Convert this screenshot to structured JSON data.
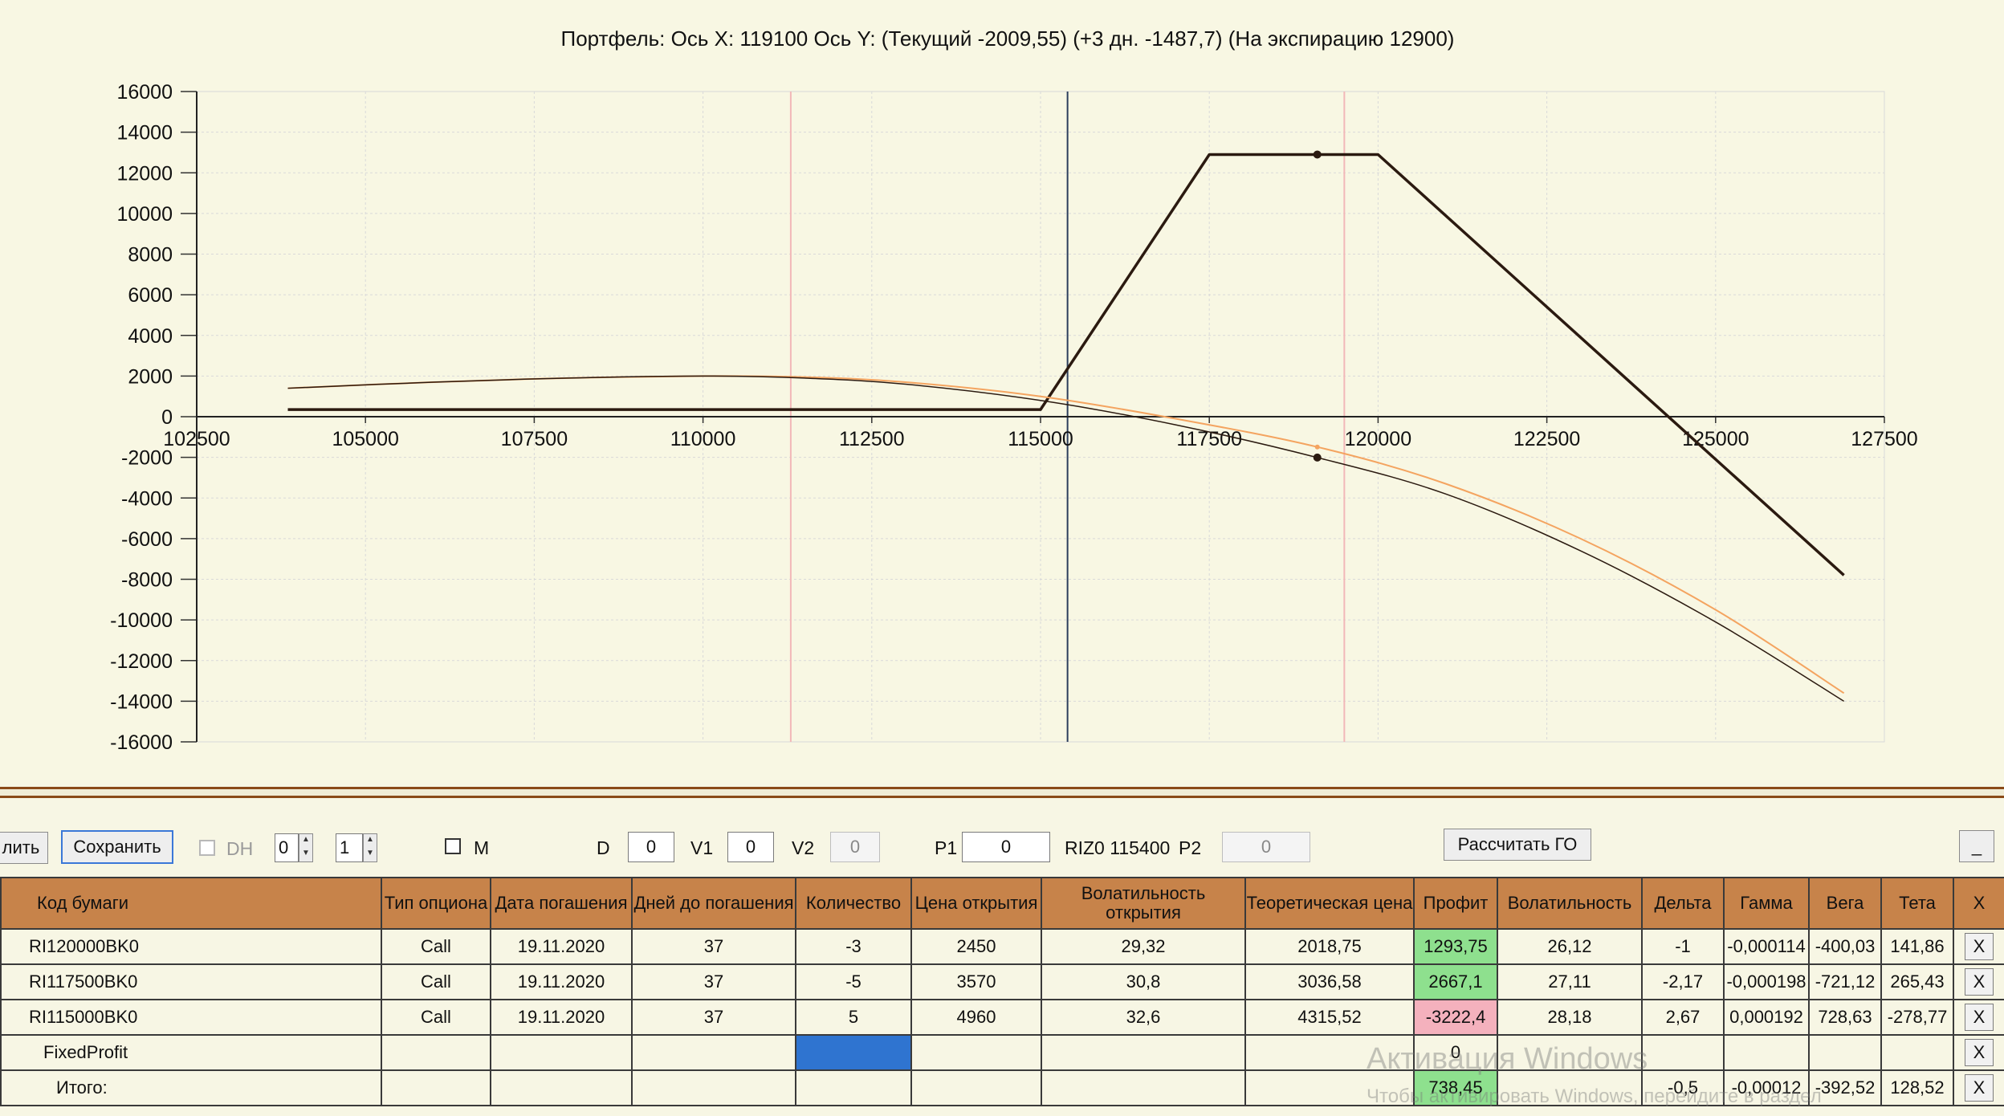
{
  "chart": {
    "title": "Портфель: Ось X: 119100 Ось Y:  (Текущий -2009,55)  (+3 дн. -1487,7)  (На экспирацию 12900)"
  },
  "chart_data": {
    "type": "line",
    "title": "Портфель: Ось X: 119100 Ось Y:  (Текущий -2009,55)  (+3 дн. -1487,7)  (На экспирацию 12900)",
    "xlim": [
      102500,
      127500
    ],
    "ylim": [
      -16000,
      16000
    ],
    "x_ticks": [
      "102500",
      "105000",
      "107500",
      "110000",
      "112500",
      "115000",
      "117500",
      "120000",
      "122500",
      "125000",
      "127500"
    ],
    "y_ticks": [
      "16000",
      "14000",
      "12000",
      "10000",
      "8000",
      "6000",
      "4000",
      "2000",
      "0",
      "-2000",
      "-4000",
      "-6000",
      "-8000",
      "-10000",
      "-12000",
      "-14000",
      "-16000"
    ],
    "grid": true,
    "vertical_markers": [
      {
        "x": 111300,
        "color": "#f2b8b8"
      },
      {
        "x": 115400,
        "color": "#2c3e5c"
      },
      {
        "x": 119500,
        "color": "#f2b8b8"
      }
    ],
    "series": [
      {
        "color": "#2b1a10",
        "width": 3.5,
        "x": [
          103850,
          115000,
          117500,
          120000,
          126900
        ],
        "y": [
          350,
          350,
          12900,
          12900,
          -7800
        ]
      },
      {
        "color": "#f4a460",
        "width": 2,
        "x": [
          103850,
          106000,
          108000,
          110000,
          111500,
          113000,
          115000,
          117000,
          119100,
          121000,
          123000,
          125000,
          126900
        ],
        "y": [
          1400,
          1700,
          1900,
          2000,
          1950,
          1700,
          1000,
          -100,
          -1490,
          -3300,
          -6000,
          -9500,
          -13600
        ]
      },
      {
        "color": "#2b1a10",
        "width": 1.5,
        "x": [
          103850,
          106000,
          108000,
          110000,
          111500,
          113000,
          115000,
          117000,
          119100,
          121000,
          123000,
          125000,
          126900
        ],
        "y": [
          1400,
          1700,
          1900,
          2000,
          1900,
          1600,
          800,
          -400,
          -2010,
          -3800,
          -6600,
          -10100,
          -14000
        ]
      }
    ],
    "points": [
      {
        "x": 119100,
        "y": 12900
      },
      {
        "x": 119100,
        "y": -2010
      },
      {
        "x": 119100,
        "y": -1490
      }
    ]
  },
  "toolbar": {
    "delete_button": "лить",
    "save_button": "Сохранить",
    "dh_label": "DH",
    "spin1_value": "0",
    "spin2_value": "1",
    "m_label": "M",
    "d_label": "D",
    "d_value": "0",
    "v1_label": "V1",
    "v1_value": "0",
    "v2_label": "V2",
    "v2_value": "0",
    "p1_label": "P1",
    "p1_value": "0",
    "instrument_text": "RIZ0 115400",
    "p2_label": "P2",
    "p2_value": "0",
    "calc_button": "Рассчитать ГО",
    "minimize_button": "_"
  },
  "table": {
    "headers": {
      "code": "Код бумаги",
      "type": "Тип опциона",
      "date": "Дата погашения",
      "days": "Дней до погашения",
      "qty": "Количество",
      "open_price": "Цена открытия",
      "open_vol": "Волатильность открытия",
      "theo": "Теоретическая цена",
      "profit": "Профит",
      "vol": "Волатильность",
      "delta": "Дельта",
      "gamma": "Гамма",
      "vega": "Вега",
      "theta": "Тета",
      "x": "X"
    },
    "rows": [
      {
        "code": "RI120000BK0",
        "type": "Call",
        "date": "19.11.2020",
        "days": "37",
        "qty": "-3",
        "open_price": "2450",
        "open_vol": "29,32",
        "theo": "2018,75",
        "profit": "1293,75",
        "vol": "26,12",
        "delta": "-1",
        "gamma": "-0,000114",
        "vega": "-400,03",
        "theta": "141,86",
        "x": "X"
      },
      {
        "code": "RI117500BK0",
        "type": "Call",
        "date": "19.11.2020",
        "days": "37",
        "qty": "-5",
        "open_price": "3570",
        "open_vol": "30,8",
        "theo": "3036,58",
        "profit": "2667,1",
        "vol": "27,11",
        "delta": "-2,17",
        "gamma": "-0,000198",
        "vega": "-721,12",
        "theta": "265,43",
        "x": "X"
      },
      {
        "code": "RI115000BK0",
        "type": "Call",
        "date": "19.11.2020",
        "days": "37",
        "qty": "5",
        "open_price": "4960",
        "open_vol": "32,6",
        "theo": "4315,52",
        "profit": "-3222,4",
        "vol": "28,18",
        "delta": "2,67",
        "gamma": "0,000192",
        "vega": "728,63",
        "theta": "-278,77",
        "x": "X"
      }
    ],
    "fixed_profit": {
      "label": "FixedProfit",
      "profit": "0",
      "x": "X"
    },
    "total": {
      "label": "Итого:",
      "profit": "738,45",
      "delta": "-0,5",
      "gamma": "-0,00012",
      "vega": "-392,52",
      "theta": "128,52",
      "x": "X"
    }
  },
  "watermark": {
    "line1": "Активация Windows",
    "line2": "Чтобы активировать Windows, перейдите в раздел"
  }
}
